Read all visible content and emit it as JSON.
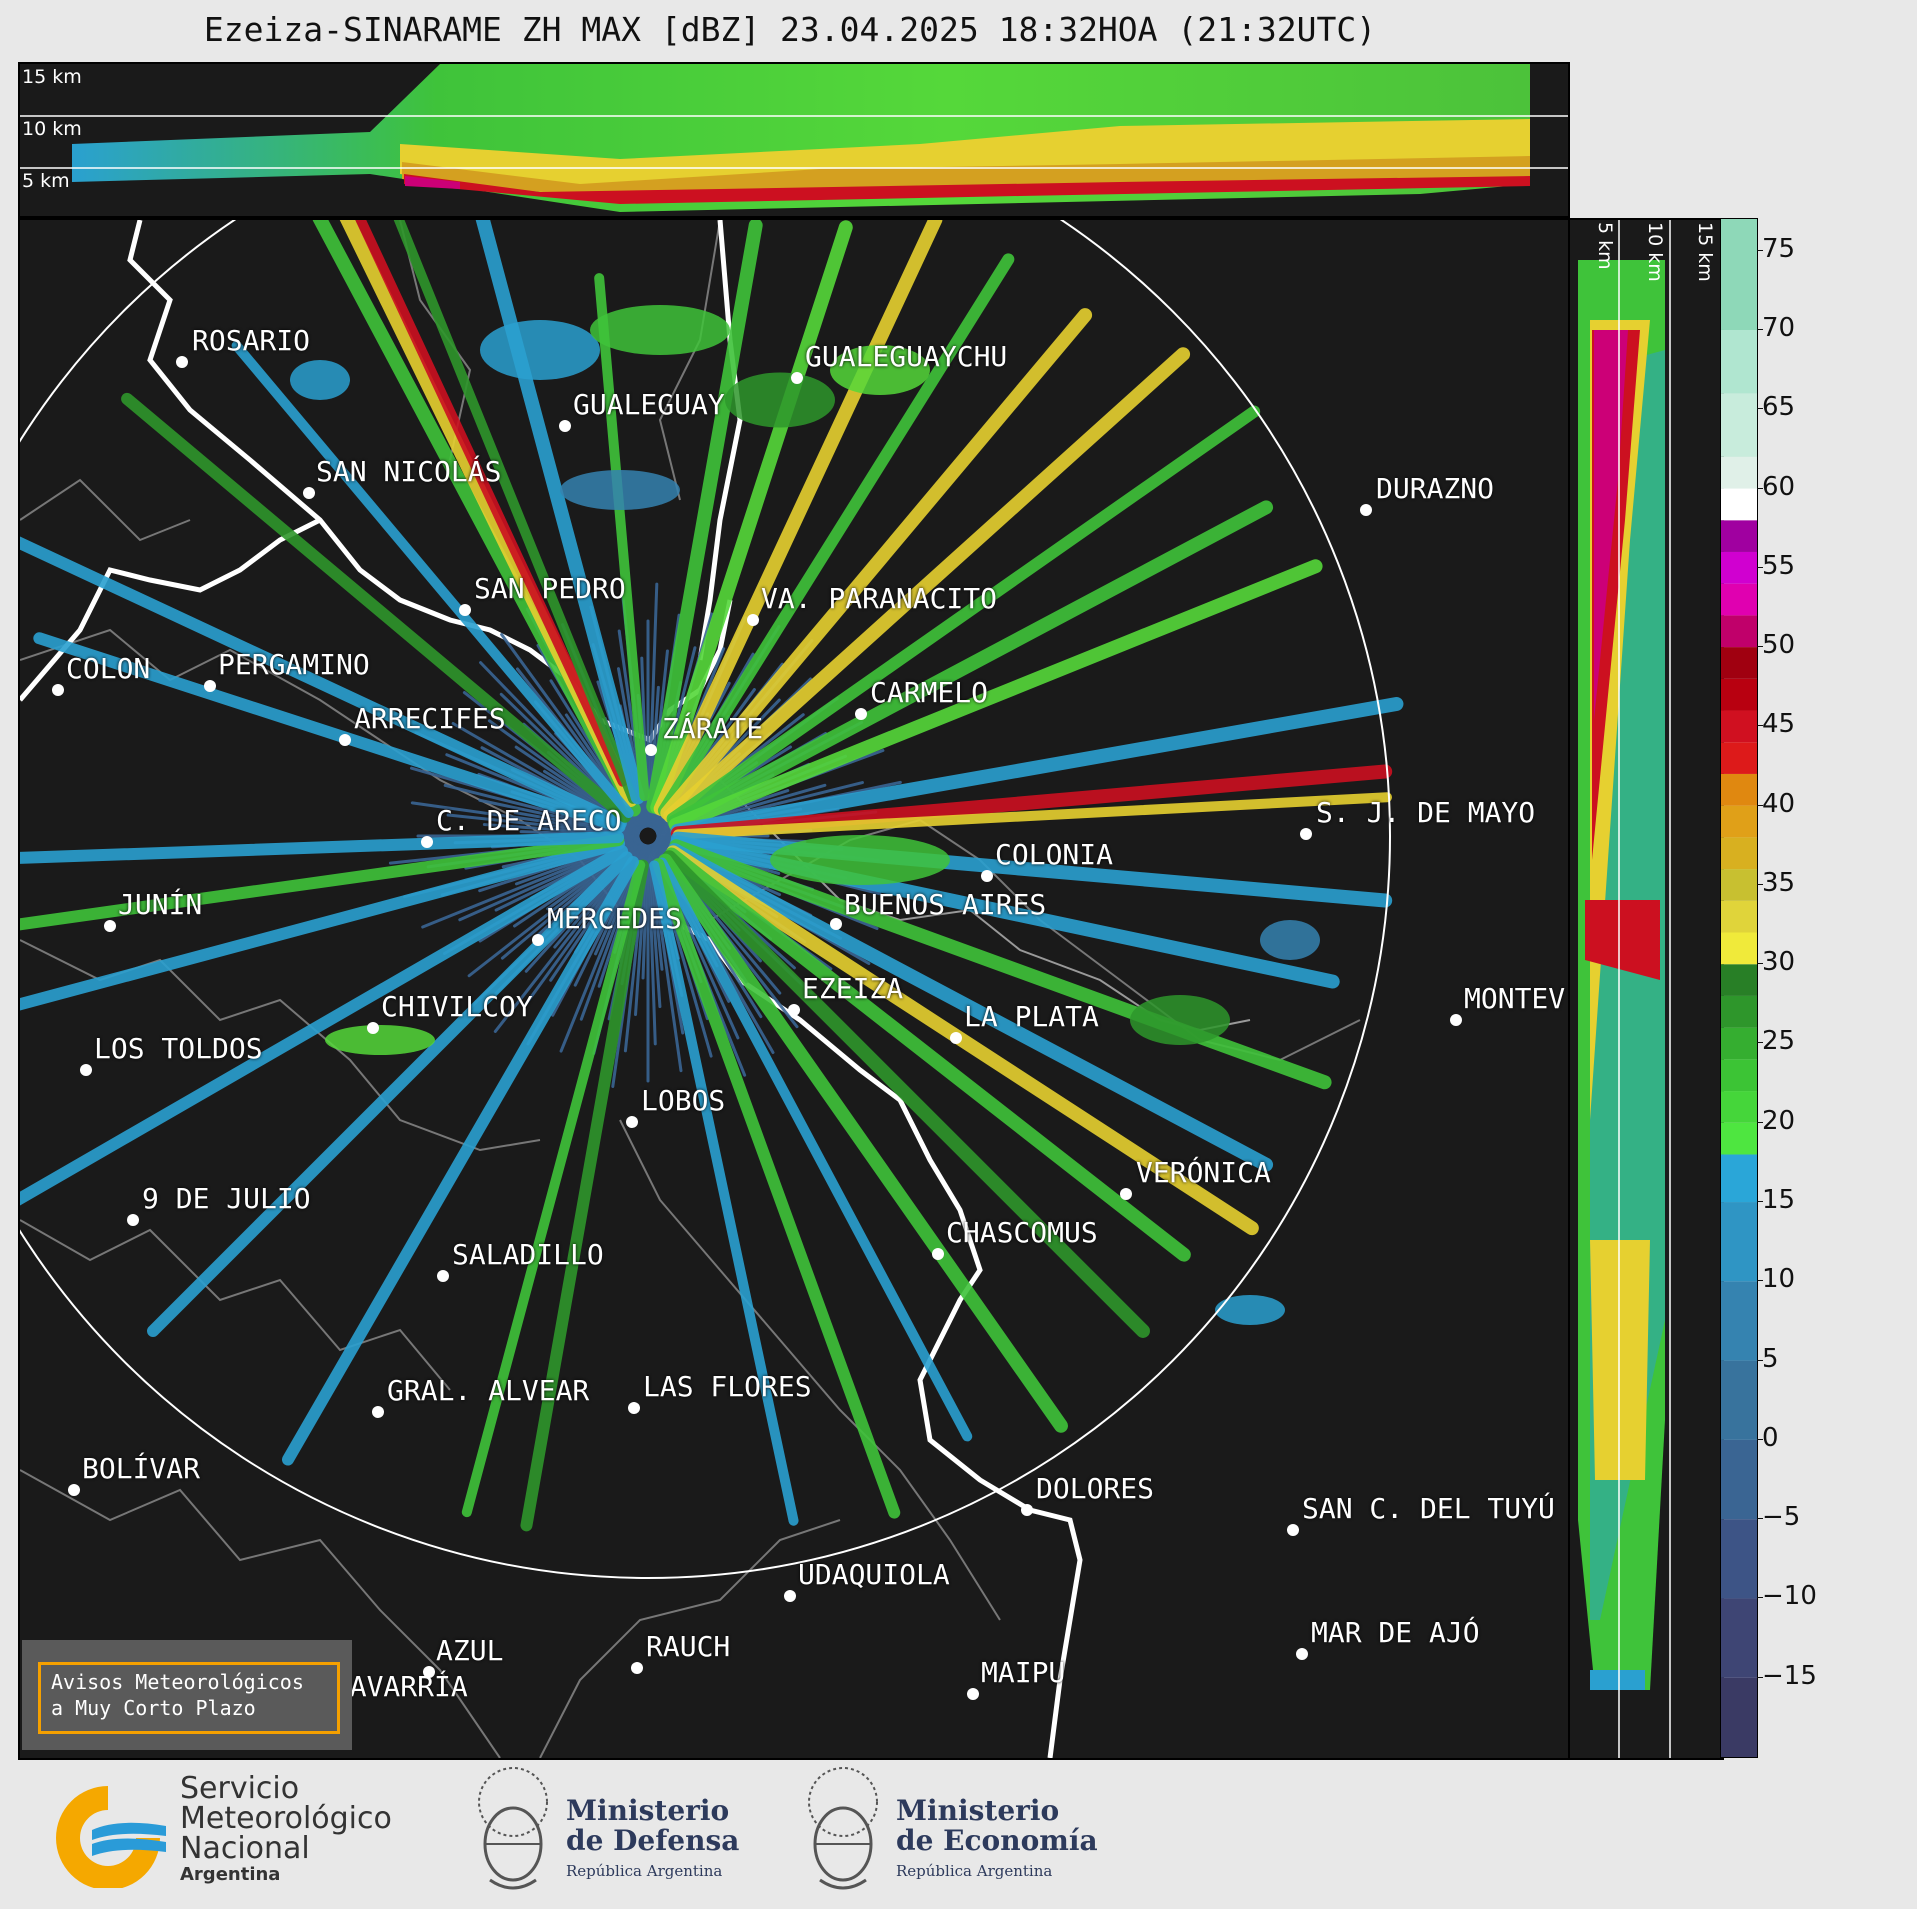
{
  "title": "Ezeiza-SINARAME ZH MAX [dBZ] 23.04.2025 18:32HOA (21:32UTC)",
  "height_labels": {
    "h15": "15 km",
    "h10": "10 km",
    "h5": "5 km"
  },
  "cities": [
    {
      "id": "rosario",
      "label": "ROSARIO"
    },
    {
      "id": "gualeguaychu",
      "label": "GUALEGUAYCHU"
    },
    {
      "id": "gualeguay",
      "label": "GUALEGUAY"
    },
    {
      "id": "san-nicolas",
      "label": "SAN NICOLÁS"
    },
    {
      "id": "durazno",
      "label": "DURAZNO"
    },
    {
      "id": "san-pedro",
      "label": "SAN PEDRO"
    },
    {
      "id": "villa-paranacito",
      "label": "VA. PARANACITO"
    },
    {
      "id": "colon",
      "label": "COLON"
    },
    {
      "id": "pergamino",
      "label": "PERGAMINO"
    },
    {
      "id": "carmelo",
      "label": "CARMELO"
    },
    {
      "id": "arrecifes",
      "label": "ARRECIFES"
    },
    {
      "id": "zarate",
      "label": "ZÁRATE"
    },
    {
      "id": "sj-de-mayo",
      "label": "S. J. DE MAYO"
    },
    {
      "id": "c-de-areco",
      "label": "C. DE ARECO"
    },
    {
      "id": "colonia",
      "label": "COLONIA"
    },
    {
      "id": "junin",
      "label": "JUNÍN"
    },
    {
      "id": "buenos-aires",
      "label": "BUENOS AIRES"
    },
    {
      "id": "mercedes",
      "label": "MERCEDES"
    },
    {
      "id": "ezeiza",
      "label": "EZEIZA"
    },
    {
      "id": "montevideo",
      "label": "MONTEV"
    },
    {
      "id": "chivilcoy",
      "label": "CHIVILCOY"
    },
    {
      "id": "la-plata",
      "label": "LA PLATA"
    },
    {
      "id": "los-toldos",
      "label": "LOS TOLDOS"
    },
    {
      "id": "lobos",
      "label": "LOBOS"
    },
    {
      "id": "veronica",
      "label": "VERÓNICA"
    },
    {
      "id": "9-de-julio",
      "label": "9 DE JULIO"
    },
    {
      "id": "chascomus",
      "label": "CHASCOMUS"
    },
    {
      "id": "saladillo",
      "label": "SALADILLO"
    },
    {
      "id": "gral-alvear",
      "label": "GRAL. ALVEAR"
    },
    {
      "id": "las-flores",
      "label": "LAS FLORES"
    },
    {
      "id": "bolivar",
      "label": "BOLÍVAR"
    },
    {
      "id": "dolores",
      "label": "DOLORES"
    },
    {
      "id": "san-c-del-tuyu",
      "label": "SAN C. DEL TUYÚ"
    },
    {
      "id": "udaquiola",
      "label": "UDAQUIOLA"
    },
    {
      "id": "mar-de-ajo",
      "label": "MAR DE AJÓ"
    },
    {
      "id": "azul",
      "label": "AZUL"
    },
    {
      "id": "rauch",
      "label": "RAUCH"
    },
    {
      "id": "olavarria",
      "label": "OLAVARRÍA"
    },
    {
      "id": "maipu",
      "label": "MAIPU"
    }
  ],
  "colorbar": {
    "unit": "dBZ",
    "ticks": [
      "75",
      "70",
      "65",
      "60",
      "55",
      "50",
      "45",
      "40",
      "35",
      "30",
      "25",
      "20",
      "15",
      "10",
      "5",
      "0",
      "−5",
      "−10",
      "−15"
    ],
    "range": [
      -20,
      77
    ]
  },
  "alert_box": {
    "line1": "Avisos Meteorológicos",
    "line2": "a Muy Corto Plazo"
  },
  "logos": {
    "smn": {
      "line1": "Servicio",
      "line2": "Meteorológico",
      "line3": "Nacional",
      "line4": "Argentina"
    },
    "defensa": {
      "line1": "Ministerio",
      "line2": "de Defensa",
      "line3": "República Argentina"
    },
    "economia": {
      "line1": "Ministerio",
      "line2": "de Economía",
      "line3": "República Argentina"
    }
  },
  "colors": {
    "background": "#1a1a1a",
    "border": "#000000",
    "alert_border": "#f5a000",
    "smn_orange": "#f5a800",
    "smn_blue": "#2a9bd8"
  }
}
